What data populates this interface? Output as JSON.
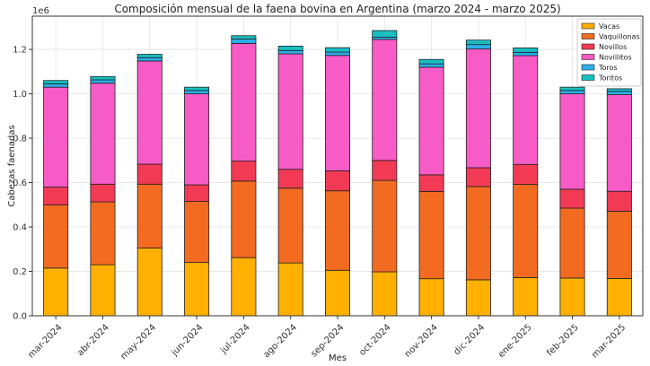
{
  "chart_data": {
    "type": "bar",
    "stacked": true,
    "title": "Composición mensual de la faena bovina en Argentina (marzo 2024 - marzo 2025)",
    "xlabel": "Mes",
    "ylabel": "Cabezas faenadas",
    "y_multiplier_label": "1e6",
    "ylim": [
      0,
      1.35
    ],
    "yticks": [
      "0.0",
      "0.2",
      "0.4",
      "0.6",
      "0.8",
      "1.0",
      "1.2"
    ],
    "grid": true,
    "legend_position": "top-right",
    "categories": [
      "mar-2024",
      "abr-2024",
      "may-2024",
      "jun-2024",
      "jul-2024",
      "ago-2024",
      "sep-2024",
      "oct-2024",
      "nov-2024",
      "dic-2024",
      "ene-2025",
      "feb-2025",
      "mar-2025"
    ],
    "series": [
      {
        "name": "Vacas",
        "color": "#FFB000",
        "values": [
          0.215,
          0.23,
          0.305,
          0.24,
          0.262,
          0.238,
          0.205,
          0.198,
          0.167,
          0.162,
          0.172,
          0.17,
          0.168
        ]
      },
      {
        "name": "Vaquillonas",
        "color": "#F26B21",
        "values": [
          0.285,
          0.283,
          0.288,
          0.275,
          0.345,
          0.337,
          0.358,
          0.412,
          0.393,
          0.42,
          0.42,
          0.315,
          0.303
        ]
      },
      {
        "name": "Novillos",
        "color": "#F23A55",
        "values": [
          0.08,
          0.08,
          0.09,
          0.075,
          0.09,
          0.085,
          0.09,
          0.09,
          0.075,
          0.085,
          0.09,
          0.085,
          0.09
        ]
      },
      {
        "name": "Novillitos",
        "color": "#F75BC6",
        "values": [
          0.45,
          0.455,
          0.465,
          0.41,
          0.53,
          0.52,
          0.52,
          0.545,
          0.485,
          0.535,
          0.49,
          0.43,
          0.435
        ]
      },
      {
        "name": "Toros",
        "color": "#2BB0EA",
        "values": [
          0.015,
          0.015,
          0.015,
          0.015,
          0.02,
          0.015,
          0.015,
          0.01,
          0.015,
          0.02,
          0.015,
          0.015,
          0.015
        ]
      },
      {
        "name": "Toritos",
        "color": "#17BFC4",
        "values": [
          0.015,
          0.015,
          0.015,
          0.015,
          0.015,
          0.02,
          0.02,
          0.03,
          0.02,
          0.02,
          0.02,
          0.015,
          0.012
        ]
      }
    ]
  }
}
